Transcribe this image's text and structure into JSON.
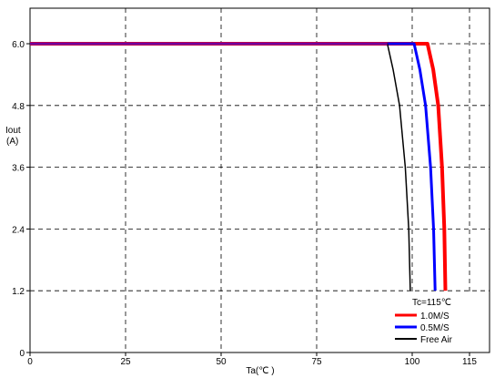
{
  "chart_data": {
    "type": "line",
    "xlabel": "Ta(℃ )",
    "ylabel_lines": [
      "Iout",
      "(A)"
    ],
    "xlim": [
      0,
      120
    ],
    "ylim": [
      0,
      7.2
    ],
    "xticks": [
      0,
      25,
      50,
      75,
      100,
      115
    ],
    "yticks": [
      0,
      1.2,
      2.4,
      3.6,
      4.8,
      6.0
    ],
    "ytick_labels": [
      "0",
      "1.2",
      "2.4",
      "3.6",
      "4.8",
      "6.0"
    ],
    "grid": "dashed",
    "legend_title": "Tc=115℃",
    "legend_position": "bottom-right",
    "series": [
      {
        "name": "1.0M/S",
        "color": "#ff0000",
        "width": 4,
        "points": [
          [
            0,
            6.0
          ],
          [
            104,
            6.0
          ],
          [
            105.5,
            5.5
          ],
          [
            106.8,
            4.8
          ],
          [
            107.8,
            3.6
          ],
          [
            108.4,
            2.4
          ],
          [
            108.7,
            1.2
          ]
        ]
      },
      {
        "name": "0.5M/S",
        "color": "#0000ff",
        "width": 3,
        "points": [
          [
            0,
            6.0
          ],
          [
            100.5,
            6.0
          ],
          [
            102,
            5.5
          ],
          [
            103.5,
            4.8
          ],
          [
            104.8,
            3.6
          ],
          [
            105.6,
            2.4
          ],
          [
            106,
            1.2
          ]
        ]
      },
      {
        "name": "Free Air",
        "color": "#000000",
        "width": 1.5,
        "points": [
          [
            0,
            6.0
          ],
          [
            93.5,
            6.0
          ],
          [
            95,
            5.5
          ],
          [
            96.7,
            4.8
          ],
          [
            98.2,
            3.6
          ],
          [
            99.1,
            2.4
          ],
          [
            99.5,
            1.2
          ]
        ]
      }
    ],
    "top_line": {
      "color": "#7000a0",
      "width": 3,
      "value": 6.0
    }
  }
}
